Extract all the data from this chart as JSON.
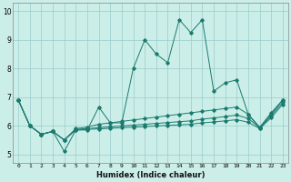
{
  "xlabel": "Humidex (Indice chaleur)",
  "bg_color": "#cceee8",
  "grid_color": "#99cccc",
  "line_color": "#1a7a6e",
  "xlim": [
    -0.5,
    23.5
  ],
  "ylim": [
    4.7,
    10.3
  ],
  "yticks": [
    5,
    6,
    7,
    8,
    9,
    10
  ],
  "xticks": [
    0,
    1,
    2,
    3,
    4,
    5,
    6,
    7,
    8,
    9,
    10,
    11,
    12,
    13,
    14,
    15,
    16,
    17,
    18,
    19,
    20,
    21,
    22,
    23
  ],
  "series": [
    [
      6.9,
      6.0,
      5.7,
      5.8,
      5.1,
      5.85,
      5.85,
      6.65,
      6.1,
      6.1,
      8.0,
      9.0,
      8.5,
      8.2,
      9.7,
      9.25,
      9.7,
      7.2,
      7.5,
      7.6,
      6.4,
      5.9,
      6.4,
      6.9
    ],
    [
      6.9,
      6.0,
      5.7,
      5.8,
      5.5,
      5.9,
      5.95,
      6.05,
      6.1,
      6.15,
      6.2,
      6.25,
      6.3,
      6.35,
      6.4,
      6.45,
      6.5,
      6.55,
      6.6,
      6.65,
      6.4,
      5.95,
      6.45,
      6.9
    ],
    [
      6.9,
      6.0,
      5.7,
      5.8,
      5.5,
      5.87,
      5.9,
      5.93,
      5.96,
      5.99,
      6.02,
      6.05,
      6.08,
      6.11,
      6.14,
      6.17,
      6.23,
      6.27,
      6.32,
      6.37,
      6.25,
      5.93,
      6.35,
      6.82
    ],
    [
      6.9,
      6.0,
      5.7,
      5.8,
      5.5,
      5.85,
      5.87,
      5.89,
      5.91,
      5.93,
      5.95,
      5.97,
      5.99,
      6.01,
      6.03,
      6.05,
      6.1,
      6.13,
      6.17,
      6.21,
      6.12,
      5.9,
      6.28,
      6.75
    ]
  ]
}
